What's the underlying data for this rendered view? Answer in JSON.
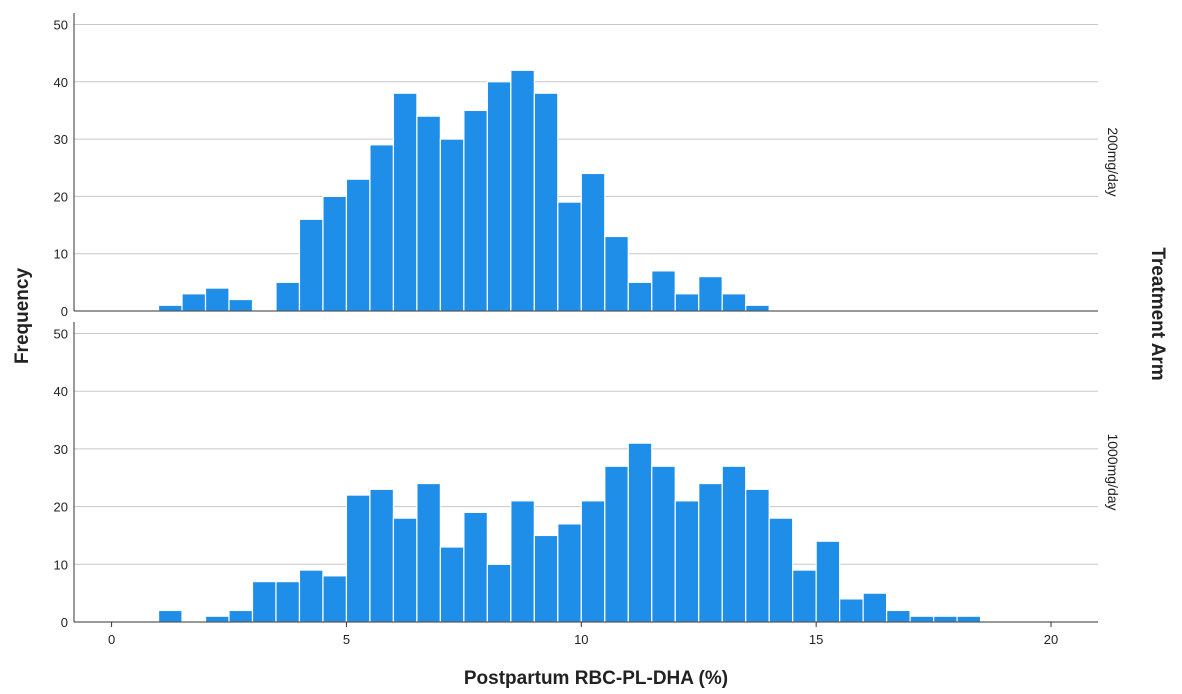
{
  "chart_data": {
    "type": "bar",
    "xlabel": "Postpartum RBC-PL-DHA (%)",
    "ylabel": "Frequency",
    "facet_title": "Treatment Arm",
    "x_ticks": [
      0,
      5,
      10,
      15,
      20
    ],
    "x_range": [
      -0.8,
      21.0
    ],
    "y_ticks": [
      0,
      10,
      20,
      30,
      40,
      50
    ],
    "ylim": [
      0,
      52
    ],
    "bin_width": 0.5,
    "grid": "horizontal",
    "bar_color": "#1f8ee8",
    "panels": [
      {
        "name": "200mg/day",
        "bins": [
          {
            "x0": 1.0,
            "count": 1
          },
          {
            "x0": 1.5,
            "count": 3
          },
          {
            "x0": 2.0,
            "count": 4
          },
          {
            "x0": 2.5,
            "count": 2
          },
          {
            "x0": 3.5,
            "count": 5
          },
          {
            "x0": 4.0,
            "count": 16
          },
          {
            "x0": 4.5,
            "count": 20
          },
          {
            "x0": 5.0,
            "count": 23
          },
          {
            "x0": 5.5,
            "count": 29
          },
          {
            "x0": 6.0,
            "count": 38
          },
          {
            "x0": 6.5,
            "count": 34
          },
          {
            "x0": 7.0,
            "count": 30
          },
          {
            "x0": 7.5,
            "count": 35
          },
          {
            "x0": 8.0,
            "count": 40
          },
          {
            "x0": 8.5,
            "count": 42
          },
          {
            "x0": 9.0,
            "count": 38
          },
          {
            "x0": 9.5,
            "count": 19
          },
          {
            "x0": 10.0,
            "count": 24
          },
          {
            "x0": 10.5,
            "count": 13
          },
          {
            "x0": 11.0,
            "count": 5
          },
          {
            "x0": 11.5,
            "count": 7
          },
          {
            "x0": 12.0,
            "count": 3
          },
          {
            "x0": 12.5,
            "count": 6
          },
          {
            "x0": 13.0,
            "count": 3
          },
          {
            "x0": 13.5,
            "count": 1
          }
        ]
      },
      {
        "name": "1000mg/day",
        "bins": [
          {
            "x0": 1.0,
            "count": 2
          },
          {
            "x0": 2.0,
            "count": 1
          },
          {
            "x0": 2.5,
            "count": 2
          },
          {
            "x0": 3.0,
            "count": 7
          },
          {
            "x0": 3.5,
            "count": 7
          },
          {
            "x0": 4.0,
            "count": 9
          },
          {
            "x0": 4.5,
            "count": 8
          },
          {
            "x0": 5.0,
            "count": 22
          },
          {
            "x0": 5.5,
            "count": 23
          },
          {
            "x0": 6.0,
            "count": 18
          },
          {
            "x0": 6.5,
            "count": 24
          },
          {
            "x0": 7.0,
            "count": 13
          },
          {
            "x0": 7.5,
            "count": 19
          },
          {
            "x0": 8.0,
            "count": 10
          },
          {
            "x0": 8.5,
            "count": 21
          },
          {
            "x0": 9.0,
            "count": 15
          },
          {
            "x0": 9.5,
            "count": 17
          },
          {
            "x0": 10.0,
            "count": 21
          },
          {
            "x0": 10.5,
            "count": 27
          },
          {
            "x0": 11.0,
            "count": 31
          },
          {
            "x0": 11.5,
            "count": 27
          },
          {
            "x0": 12.0,
            "count": 21
          },
          {
            "x0": 12.5,
            "count": 24
          },
          {
            "x0": 13.0,
            "count": 27
          },
          {
            "x0": 13.5,
            "count": 23
          },
          {
            "x0": 14.0,
            "count": 18
          },
          {
            "x0": 14.5,
            "count": 9
          },
          {
            "x0": 15.0,
            "count": 14
          },
          {
            "x0": 15.5,
            "count": 4
          },
          {
            "x0": 16.0,
            "count": 5
          },
          {
            "x0": 16.5,
            "count": 2
          },
          {
            "x0": 17.0,
            "count": 1
          },
          {
            "x0": 17.5,
            "count": 1
          },
          {
            "x0": 18.0,
            "count": 1
          }
        ]
      }
    ]
  }
}
